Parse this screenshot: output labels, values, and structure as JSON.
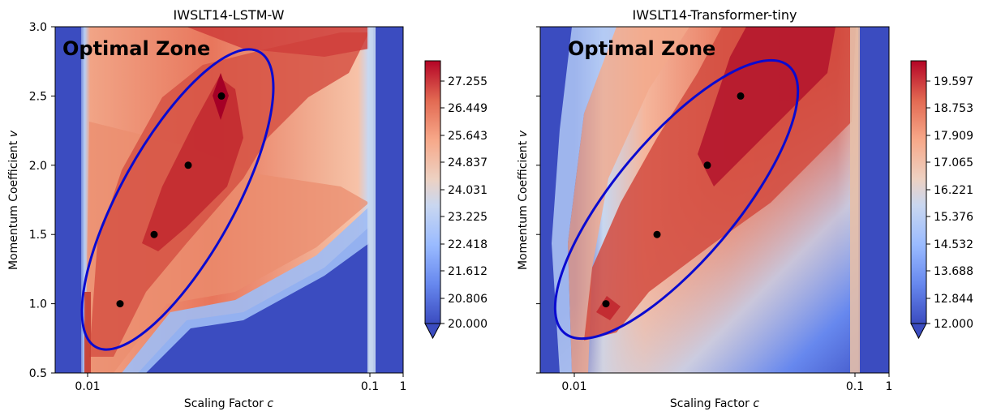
{
  "chart_data": [
    {
      "type": "contourf",
      "title": "IWSLT14-LSTM-W",
      "xlabel": "Scaling Factor ",
      "xlabel_var": "c",
      "ylabel": "Momentum Coefficient ",
      "ylabel_var": "v",
      "xscale": "log",
      "x_ticks": [
        0.01,
        0.1,
        1
      ],
      "x_tick_labels": [
        "0.01",
        "0.1",
        "1"
      ],
      "ylim": [
        0.5,
        3.0
      ],
      "y_ticks": [
        "0.5",
        "1.0",
        "1.5",
        "2.0",
        "2.5",
        "3.0"
      ],
      "annotation": "Optimal Zone",
      "optimal_points": [
        {
          "x": 0.013,
          "y": 1.0
        },
        {
          "x": 0.017,
          "y": 1.5
        },
        {
          "x": 0.022,
          "y": 2.0
        },
        {
          "x": 0.029,
          "y": 2.5
        }
      ],
      "colorbar": {
        "min": 20.0,
        "max": 27.7,
        "extend": "min",
        "tick_values": [
          20.0,
          20.806,
          21.612,
          22.418,
          23.225,
          24.031,
          24.837,
          25.643,
          26.449,
          27.255
        ],
        "tick_labels": [
          "20.000",
          "20.806",
          "21.612",
          "22.418",
          "23.225",
          "24.031",
          "24.837",
          "25.643",
          "26.449",
          "27.255"
        ]
      },
      "colormap": "coolwarm"
    },
    {
      "type": "contourf",
      "title": "IWSLT14-Transformer-tiny",
      "xlabel": "Scaling Factor ",
      "xlabel_var": "c",
      "ylabel": "Momentum Coefficient ",
      "ylabel_var": "v",
      "xscale": "log",
      "x_ticks": [
        0.01,
        0.1,
        1
      ],
      "x_tick_labels": [
        "0.01",
        "0.1",
        "1"
      ],
      "ylim": [
        0.5,
        3.0
      ],
      "y_ticks": [],
      "annotation": "Optimal Zone",
      "optimal_points": [
        {
          "x": 0.013,
          "y": 1.0
        },
        {
          "x": 0.02,
          "y": 1.5
        },
        {
          "x": 0.03,
          "y": 2.0
        },
        {
          "x": 0.04,
          "y": 2.5
        }
      ],
      "colorbar": {
        "min": 12.0,
        "max": 20.2,
        "extend": "min",
        "tick_values": [
          12.0,
          12.844,
          13.688,
          14.532,
          15.376,
          16.221,
          17.065,
          17.909,
          18.753,
          19.597
        ],
        "tick_labels": [
          "12.000",
          "12.844",
          "13.688",
          "14.532",
          "15.376",
          "16.221",
          "17.065",
          "17.909",
          "18.753",
          "19.597"
        ]
      },
      "colormap": "coolwarm"
    }
  ]
}
